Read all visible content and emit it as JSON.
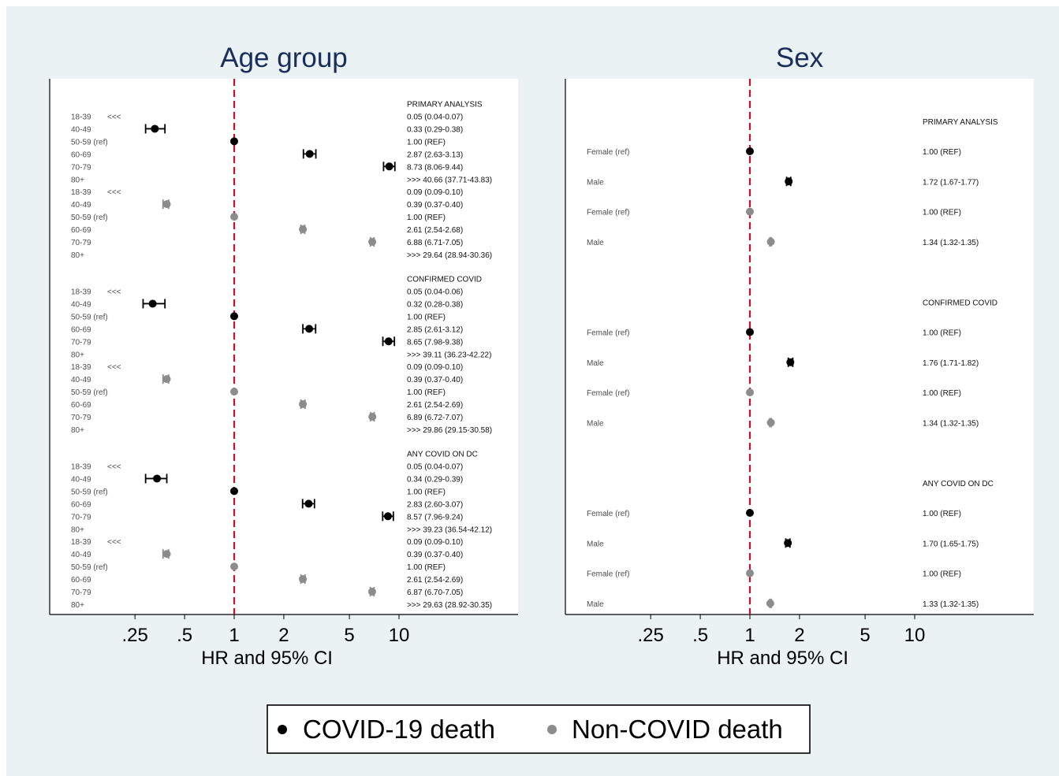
{
  "colors": {
    "background": "#eaf2f3",
    "plot_bg": "#ffffff",
    "title": "#1a2e5c",
    "covid": "#000000",
    "noncovid": "#8c8c8c",
    "refline": "#c8102e",
    "label": "#4d4d4d"
  },
  "legend": {
    "covid_label": "COVID-19 death",
    "noncovid_label": "Non-COVID death"
  },
  "chart_data": [
    {
      "type": "scatter",
      "subtype": "forest-plot",
      "title": "Age group",
      "xlabel": "HR and 95% CI",
      "xscale": "log",
      "xticks": [
        0.25,
        0.5,
        1,
        2,
        5,
        10
      ],
      "xtick_labels": [
        ".25",
        ".5",
        "1",
        "2",
        "5",
        "10"
      ],
      "reference_line": 1,
      "sections": [
        {
          "header": "PRIMARY ANALYSIS",
          "rows": [
            {
              "label": "18-39",
              "series": "covid",
              "arrow": "<<<",
              "hr": null,
              "lo": null,
              "hi": null,
              "text": "0.05 (0.04-0.07)"
            },
            {
              "label": "40-49",
              "series": "covid",
              "hr": 0.33,
              "lo": 0.29,
              "hi": 0.38,
              "text": "0.33 (0.29-0.38)"
            },
            {
              "label": "50-59 (ref)",
              "series": "covid",
              "hr": 1,
              "lo": 1,
              "hi": 1,
              "text": "1.00 (REF)"
            },
            {
              "label": "60-69",
              "series": "covid",
              "hr": 2.87,
              "lo": 2.63,
              "hi": 3.13,
              "text": "2.87 (2.63-3.13)"
            },
            {
              "label": "70-79",
              "series": "covid",
              "hr": 8.73,
              "lo": 8.06,
              "hi": 9.44,
              "text": "8.73 (8.06-9.44)"
            },
            {
              "label": "80+",
              "series": "covid",
              "hr": null,
              "lo": null,
              "hi": null,
              "text": ">>> 40.66 (37.71-43.83)"
            },
            {
              "label": "18-39",
              "series": "noncovid",
              "arrow": "<<<",
              "hr": null,
              "lo": null,
              "hi": null,
              "text": "0.09 (0.09-0.10)"
            },
            {
              "label": "40-49",
              "series": "noncovid",
              "hr": 0.39,
              "lo": 0.37,
              "hi": 0.4,
              "text": "0.39 (0.37-0.40)"
            },
            {
              "label": "50-59 (ref)",
              "series": "noncovid",
              "hr": 1,
              "lo": 1,
              "hi": 1,
              "text": "1.00 (REF)"
            },
            {
              "label": "60-69",
              "series": "noncovid",
              "hr": 2.61,
              "lo": 2.54,
              "hi": 2.68,
              "text": "2.61 (2.54-2.68)"
            },
            {
              "label": "70-79",
              "series": "noncovid",
              "hr": 6.88,
              "lo": 6.71,
              "hi": 7.05,
              "text": "6.88 (6.71-7.05)"
            },
            {
              "label": "80+",
              "series": "noncovid",
              "hr": null,
              "lo": null,
              "hi": null,
              "text": ">>> 29.64 (28.94-30.36)"
            }
          ]
        },
        {
          "header": "CONFIRMED COVID",
          "rows": [
            {
              "label": "18-39",
              "series": "covid",
              "arrow": "<<<",
              "hr": null,
              "lo": null,
              "hi": null,
              "text": "0.05 (0.04-0.06)"
            },
            {
              "label": "40-49",
              "series": "covid",
              "hr": 0.32,
              "lo": 0.28,
              "hi": 0.38,
              "text": "0.32 (0.28-0.38)"
            },
            {
              "label": "50-59 (ref)",
              "series": "covid",
              "hr": 1,
              "lo": 1,
              "hi": 1,
              "text": "1.00 (REF)"
            },
            {
              "label": "60-69",
              "series": "covid",
              "hr": 2.85,
              "lo": 2.61,
              "hi": 3.12,
              "text": "2.85 (2.61-3.12)"
            },
            {
              "label": "70-79",
              "series": "covid",
              "hr": 8.65,
              "lo": 7.98,
              "hi": 9.38,
              "text": "8.65 (7.98-9.38)"
            },
            {
              "label": "80+",
              "series": "covid",
              "hr": null,
              "lo": null,
              "hi": null,
              "text": ">>> 39.11 (36.23-42.22)"
            },
            {
              "label": "18-39",
              "series": "noncovid",
              "arrow": "<<<",
              "hr": null,
              "lo": null,
              "hi": null,
              "text": "0.09 (0.09-0.10)"
            },
            {
              "label": "40-49",
              "series": "noncovid",
              "hr": 0.39,
              "lo": 0.37,
              "hi": 0.4,
              "text": "0.39 (0.37-0.40)"
            },
            {
              "label": "50-59 (ref)",
              "series": "noncovid",
              "hr": 1,
              "lo": 1,
              "hi": 1,
              "text": "1.00 (REF)"
            },
            {
              "label": "60-69",
              "series": "noncovid",
              "hr": 2.61,
              "lo": 2.54,
              "hi": 2.69,
              "text": "2.61 (2.54-2.69)"
            },
            {
              "label": "70-79",
              "series": "noncovid",
              "hr": 6.89,
              "lo": 6.72,
              "hi": 7.07,
              "text": "6.89 (6.72-7.07)"
            },
            {
              "label": "80+",
              "series": "noncovid",
              "hr": null,
              "lo": null,
              "hi": null,
              "text": ">>> 29.86 (29.15-30.58)"
            }
          ]
        },
        {
          "header": "ANY COVID ON DC",
          "rows": [
            {
              "label": "18-39",
              "series": "covid",
              "arrow": "<<<",
              "hr": null,
              "lo": null,
              "hi": null,
              "text": "0.05 (0.04-0.07)"
            },
            {
              "label": "40-49",
              "series": "covid",
              "hr": 0.34,
              "lo": 0.29,
              "hi": 0.39,
              "text": "0.34 (0.29-0.39)"
            },
            {
              "label": "50-59 (ref)",
              "series": "covid",
              "hr": 1,
              "lo": 1,
              "hi": 1,
              "text": "1.00 (REF)"
            },
            {
              "label": "60-69",
              "series": "covid",
              "hr": 2.83,
              "lo": 2.6,
              "hi": 3.07,
              "text": "2.83 (2.60-3.07)"
            },
            {
              "label": "70-79",
              "series": "covid",
              "hr": 8.57,
              "lo": 7.96,
              "hi": 9.24,
              "text": "8.57 (7.96-9.24)"
            },
            {
              "label": "80+",
              "series": "covid",
              "hr": null,
              "lo": null,
              "hi": null,
              "text": ">>> 39.23 (36.54-42.12)"
            },
            {
              "label": "18-39",
              "series": "noncovid",
              "arrow": "<<<",
              "hr": null,
              "lo": null,
              "hi": null,
              "text": "0.09 (0.09-0.10)"
            },
            {
              "label": "40-49",
              "series": "noncovid",
              "hr": 0.39,
              "lo": 0.37,
              "hi": 0.4,
              "text": "0.39 (0.37-0.40)"
            },
            {
              "label": "50-59 (ref)",
              "series": "noncovid",
              "hr": 1,
              "lo": 1,
              "hi": 1,
              "text": "1.00 (REF)"
            },
            {
              "label": "60-69",
              "series": "noncovid",
              "hr": 2.61,
              "lo": 2.54,
              "hi": 2.69,
              "text": "2.61 (2.54-2.69)"
            },
            {
              "label": "70-79",
              "series": "noncovid",
              "hr": 6.87,
              "lo": 6.7,
              "hi": 7.05,
              "text": "6.87 (6.70-7.05)"
            },
            {
              "label": "80+",
              "series": "noncovid",
              "hr": null,
              "lo": null,
              "hi": null,
              "text": ">>> 29.63 (28.92-30.35)"
            }
          ]
        }
      ]
    },
    {
      "type": "scatter",
      "subtype": "forest-plot",
      "title": "Sex",
      "xlabel": "HR and 95% CI",
      "xscale": "log",
      "xticks": [
        0.25,
        0.5,
        1,
        2,
        5,
        10
      ],
      "xtick_labels": [
        ".25",
        ".5",
        "1",
        "2",
        "5",
        "10"
      ],
      "reference_line": 1,
      "sections": [
        {
          "header": "PRIMARY ANALYSIS",
          "rows": [
            {
              "label": "Female (ref)",
              "series": "covid",
              "hr": 1,
              "lo": 1,
              "hi": 1,
              "text": "1.00 (REF)"
            },
            {
              "label": "Male",
              "series": "covid",
              "hr": 1.72,
              "lo": 1.67,
              "hi": 1.77,
              "text": "1.72 (1.67-1.77)"
            },
            {
              "label": "Female (ref)",
              "series": "noncovid",
              "hr": 1,
              "lo": 1,
              "hi": 1,
              "text": "1.00 (REF)"
            },
            {
              "label": "Male",
              "series": "noncovid",
              "hr": 1.34,
              "lo": 1.32,
              "hi": 1.35,
              "text": "1.34 (1.32-1.35)"
            }
          ]
        },
        {
          "header": "CONFIRMED COVID",
          "rows": [
            {
              "label": "Female (ref)",
              "series": "covid",
              "hr": 1,
              "lo": 1,
              "hi": 1,
              "text": "1.00 (REF)"
            },
            {
              "label": "Male",
              "series": "covid",
              "hr": 1.76,
              "lo": 1.71,
              "hi": 1.82,
              "text": "1.76 (1.71-1.82)"
            },
            {
              "label": "Female (ref)",
              "series": "noncovid",
              "hr": 1,
              "lo": 1,
              "hi": 1,
              "text": "1.00 (REF)"
            },
            {
              "label": "Male",
              "series": "noncovid",
              "hr": 1.34,
              "lo": 1.32,
              "hi": 1.35,
              "text": "1.34 (1.32-1.35)"
            }
          ]
        },
        {
          "header": "ANY COVID ON DC",
          "rows": [
            {
              "label": "Female (ref)",
              "series": "covid",
              "hr": 1,
              "lo": 1,
              "hi": 1,
              "text": "1.00 (REF)"
            },
            {
              "label": "Male",
              "series": "covid",
              "hr": 1.7,
              "lo": 1.65,
              "hi": 1.75,
              "text": "1.70 (1.65-1.75)"
            },
            {
              "label": "Female (ref)",
              "series": "noncovid",
              "hr": 1,
              "lo": 1,
              "hi": 1,
              "text": "1.00 (REF)"
            },
            {
              "label": "Male",
              "series": "noncovid",
              "hr": 1.33,
              "lo": 1.32,
              "hi": 1.35,
              "text": "1.33 (1.32-1.35)"
            }
          ]
        }
      ]
    }
  ]
}
